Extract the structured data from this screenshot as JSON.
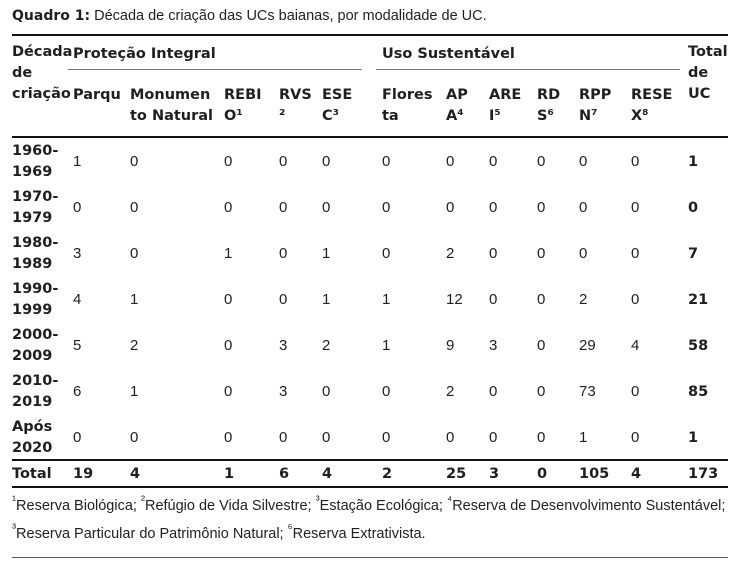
{
  "caption": {
    "label": "Quadro 1:",
    "text": " Década de criação das UCs baianas, por modalidade de UC."
  },
  "header": {
    "decade": "Década de criação",
    "group_integral": "Proteção Integral",
    "group_sustentavel": "Uso Sustentável",
    "total": "Total de UC",
    "columns": [
      {
        "line1": "Parqu",
        "line2": ""
      },
      {
        "line1": "Monumen",
        "line2": "to Natural"
      },
      {
        "line1": "REBI",
        "line2": "O¹"
      },
      {
        "line1": "RVS",
        "line2": "²"
      },
      {
        "line1": "ESE",
        "line2": "C³"
      },
      {
        "line1": "Flores",
        "line2": "ta"
      },
      {
        "line1": "AP",
        "line2": "A⁴"
      },
      {
        "line1": "ARE",
        "line2": "I⁵"
      },
      {
        "line1": "RD",
        "line2": "S⁶"
      },
      {
        "line1": "RPP",
        "line2": "N⁷"
      },
      {
        "line1": "RESE",
        "line2": "X⁸"
      }
    ]
  },
  "rows": [
    {
      "decade": [
        "1960-",
        "1969"
      ],
      "values": [
        "1",
        "0",
        "0",
        "0",
        "0",
        "0",
        "0",
        "0",
        "0",
        "0",
        "0"
      ],
      "total": "1"
    },
    {
      "decade": [
        "1970-",
        "1979"
      ],
      "values": [
        "0",
        "0",
        "0",
        "0",
        "0",
        "0",
        "0",
        "0",
        "0",
        "0",
        "0"
      ],
      "total": "0"
    },
    {
      "decade": [
        "1980-",
        "1989"
      ],
      "values": [
        "3",
        "0",
        "1",
        "0",
        "1",
        "0",
        "2",
        "0",
        "0",
        "0",
        "0"
      ],
      "total": "7"
    },
    {
      "decade": [
        "1990-",
        "1999"
      ],
      "values": [
        "4",
        "1",
        "0",
        "0",
        "1",
        "1",
        "12",
        "0",
        "0",
        "2",
        "0"
      ],
      "total": "21"
    },
    {
      "decade": [
        "2000-",
        "2009"
      ],
      "values": [
        "5",
        "2",
        "0",
        "3",
        "2",
        "1",
        "9",
        "3",
        "0",
        "29",
        "4"
      ],
      "total": "58"
    },
    {
      "decade": [
        "2010-",
        "2019"
      ],
      "values": [
        "6",
        "1",
        "0",
        "3",
        "0",
        "0",
        "2",
        "0",
        "0",
        "73",
        "0"
      ],
      "total": "85"
    },
    {
      "decade": [
        "Após",
        "2020"
      ],
      "values": [
        "0",
        "0",
        "0",
        "0",
        "0",
        "0",
        "0",
        "0",
        "0",
        "1",
        "0"
      ],
      "total": "1"
    }
  ],
  "total_row": {
    "label": "Total",
    "values": [
      "19",
      "4",
      "1",
      "6",
      "4",
      "2",
      "25",
      "3",
      "0",
      "105",
      "4"
    ],
    "total": "173"
  },
  "footnotes": {
    "n1": "Reserva Biológica; ",
    "n2": "Refúgio de Vida Silvestre; ",
    "n3": "Estação Ecológica; ",
    "n4": "Reserva de Desenvolvimento Sustentável; ",
    "n5": "Reserva Particular do Patrimônio Natural; ",
    "n6": "Reserva Extrativista.",
    "m1": "¹",
    "m2": "²",
    "m3": "³",
    "m4": "⁴",
    "m5": "³",
    "m6": "⁶"
  }
}
